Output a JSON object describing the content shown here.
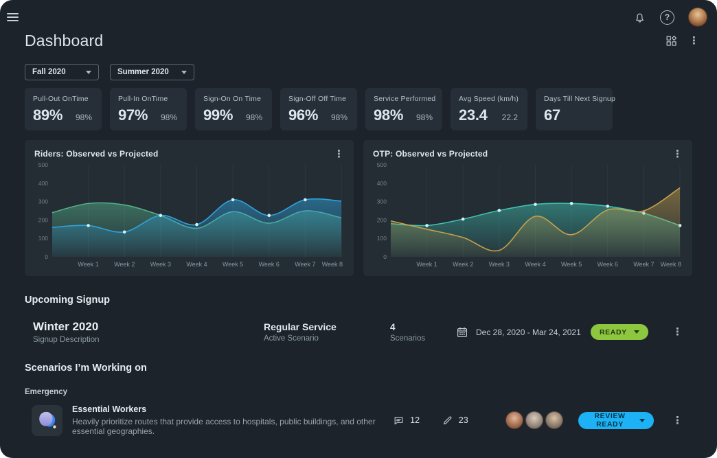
{
  "topbar": {
    "menu_icon": "hamburger-icon",
    "bell_icon": "bell-icon",
    "help_icon": "help-icon",
    "avatar": "user-avatar"
  },
  "header": {
    "title": "Dashboard",
    "widgets_icon": "dashboard-widgets-icon",
    "menu_icon": "kebab-menu-icon"
  },
  "filters": [
    {
      "label": "Fall 2020"
    },
    {
      "label": "Summer 2020"
    }
  ],
  "kpis": [
    {
      "label": "Pull-Out OnTime",
      "value": "89%",
      "secondary": "98%"
    },
    {
      "label": "Pull-In OnTime",
      "value": "97%",
      "secondary": "98%"
    },
    {
      "label": "Sign-On On Time",
      "value": "99%",
      "secondary": "98%"
    },
    {
      "label": "Sign-Off Off Time",
      "value": "96%",
      "secondary": "98%"
    },
    {
      "label": "Service Performed",
      "value": "98%",
      "secondary": "98%"
    },
    {
      "label": "Avg Speed (km/h)",
      "value": "23.4",
      "secondary": "22.2"
    },
    {
      "label": "Days Till Next Signup",
      "value": "67",
      "secondary": ""
    }
  ],
  "chart_data": [
    {
      "type": "area",
      "title": "Riders: Observed vs Projected",
      "x_labels": [
        "Week 1",
        "Week 2",
        "Week 3",
        "Week 4",
        "Week 5",
        "Week 6",
        "Week 7",
        "Week 8"
      ],
      "ylim": [
        0,
        500
      ],
      "yticks": [
        0,
        100,
        200,
        300,
        400,
        500
      ],
      "grid": "vertical",
      "legend": "none",
      "note": "values[0] is the curve start at the left plot edge before Week 1; values[1..8] align with Week 1..Week 8",
      "series": [
        {
          "name": "Projected",
          "color": "#54b08a",
          "values": [
            240,
            290,
            282,
            225,
            155,
            245,
            183,
            250,
            212
          ],
          "marker_weeks": []
        },
        {
          "name": "Observed",
          "color": "#2fa3dc",
          "values": [
            160,
            170,
            135,
            225,
            175,
            310,
            225,
            310,
            303
          ],
          "marker_weeks": [
            1,
            2,
            3,
            4,
            5,
            6,
            7
          ]
        }
      ]
    },
    {
      "type": "area",
      "title": "OTP: Observed vs Projected",
      "x_labels": [
        "Week 1",
        "Week 2",
        "Week 3",
        "Week 4",
        "Week 5",
        "Week 6",
        "Week 7",
        "Week 8"
      ],
      "ylim": [
        0,
        500
      ],
      "yticks": [
        0,
        100,
        200,
        300,
        400,
        500
      ],
      "grid": "vertical",
      "legend": "none",
      "note": "values[0] is the curve start at the left plot edge before Week 1; values[1..8] align with Week 1..Week 8",
      "series": [
        {
          "name": "Observed",
          "color": "#3fc1b0",
          "values": [
            180,
            170,
            205,
            252,
            285,
            290,
            275,
            237,
            170
          ],
          "marker_weeks": [
            1,
            2,
            3,
            4,
            5,
            6,
            7,
            8
          ]
        },
        {
          "name": "Projected",
          "color": "#c7a24a",
          "values": [
            195,
            150,
            105,
            35,
            220,
            120,
            255,
            250,
            375
          ],
          "marker_weeks": []
        }
      ]
    }
  ],
  "upcoming": {
    "heading": "Upcoming Signup",
    "signup": {
      "name": "Winter 2020",
      "name_sub": "Signup Description",
      "service": "Regular Service",
      "service_sub": "Active Scenario",
      "scenario_count": "4",
      "scenario_sub": "Scenarios",
      "date_range": "Dec 28, 2020 - Mar 24, 2021",
      "status": "READY"
    }
  },
  "working": {
    "heading": "Scenarios I’m Working on",
    "group": "Emergency",
    "scenario": {
      "title": "Essential Workers",
      "description": "Heavily prioritize routes that provide access to hospitals, public buildings, and other essential geographies.",
      "comment_count": "12",
      "edit_count": "23",
      "status": "REVIEW READY"
    }
  },
  "colors": {
    "page_bg": "#1c232a",
    "panel_bg": "#242c34",
    "card_bg": "#262e37",
    "ready_green": "#8dc63f",
    "review_blue": "#1db2f5",
    "observed_blue": "#2fa3dc",
    "projected_green": "#54b08a",
    "observed_teal": "#3fc1b0",
    "projected_yellow": "#c7a24a"
  }
}
